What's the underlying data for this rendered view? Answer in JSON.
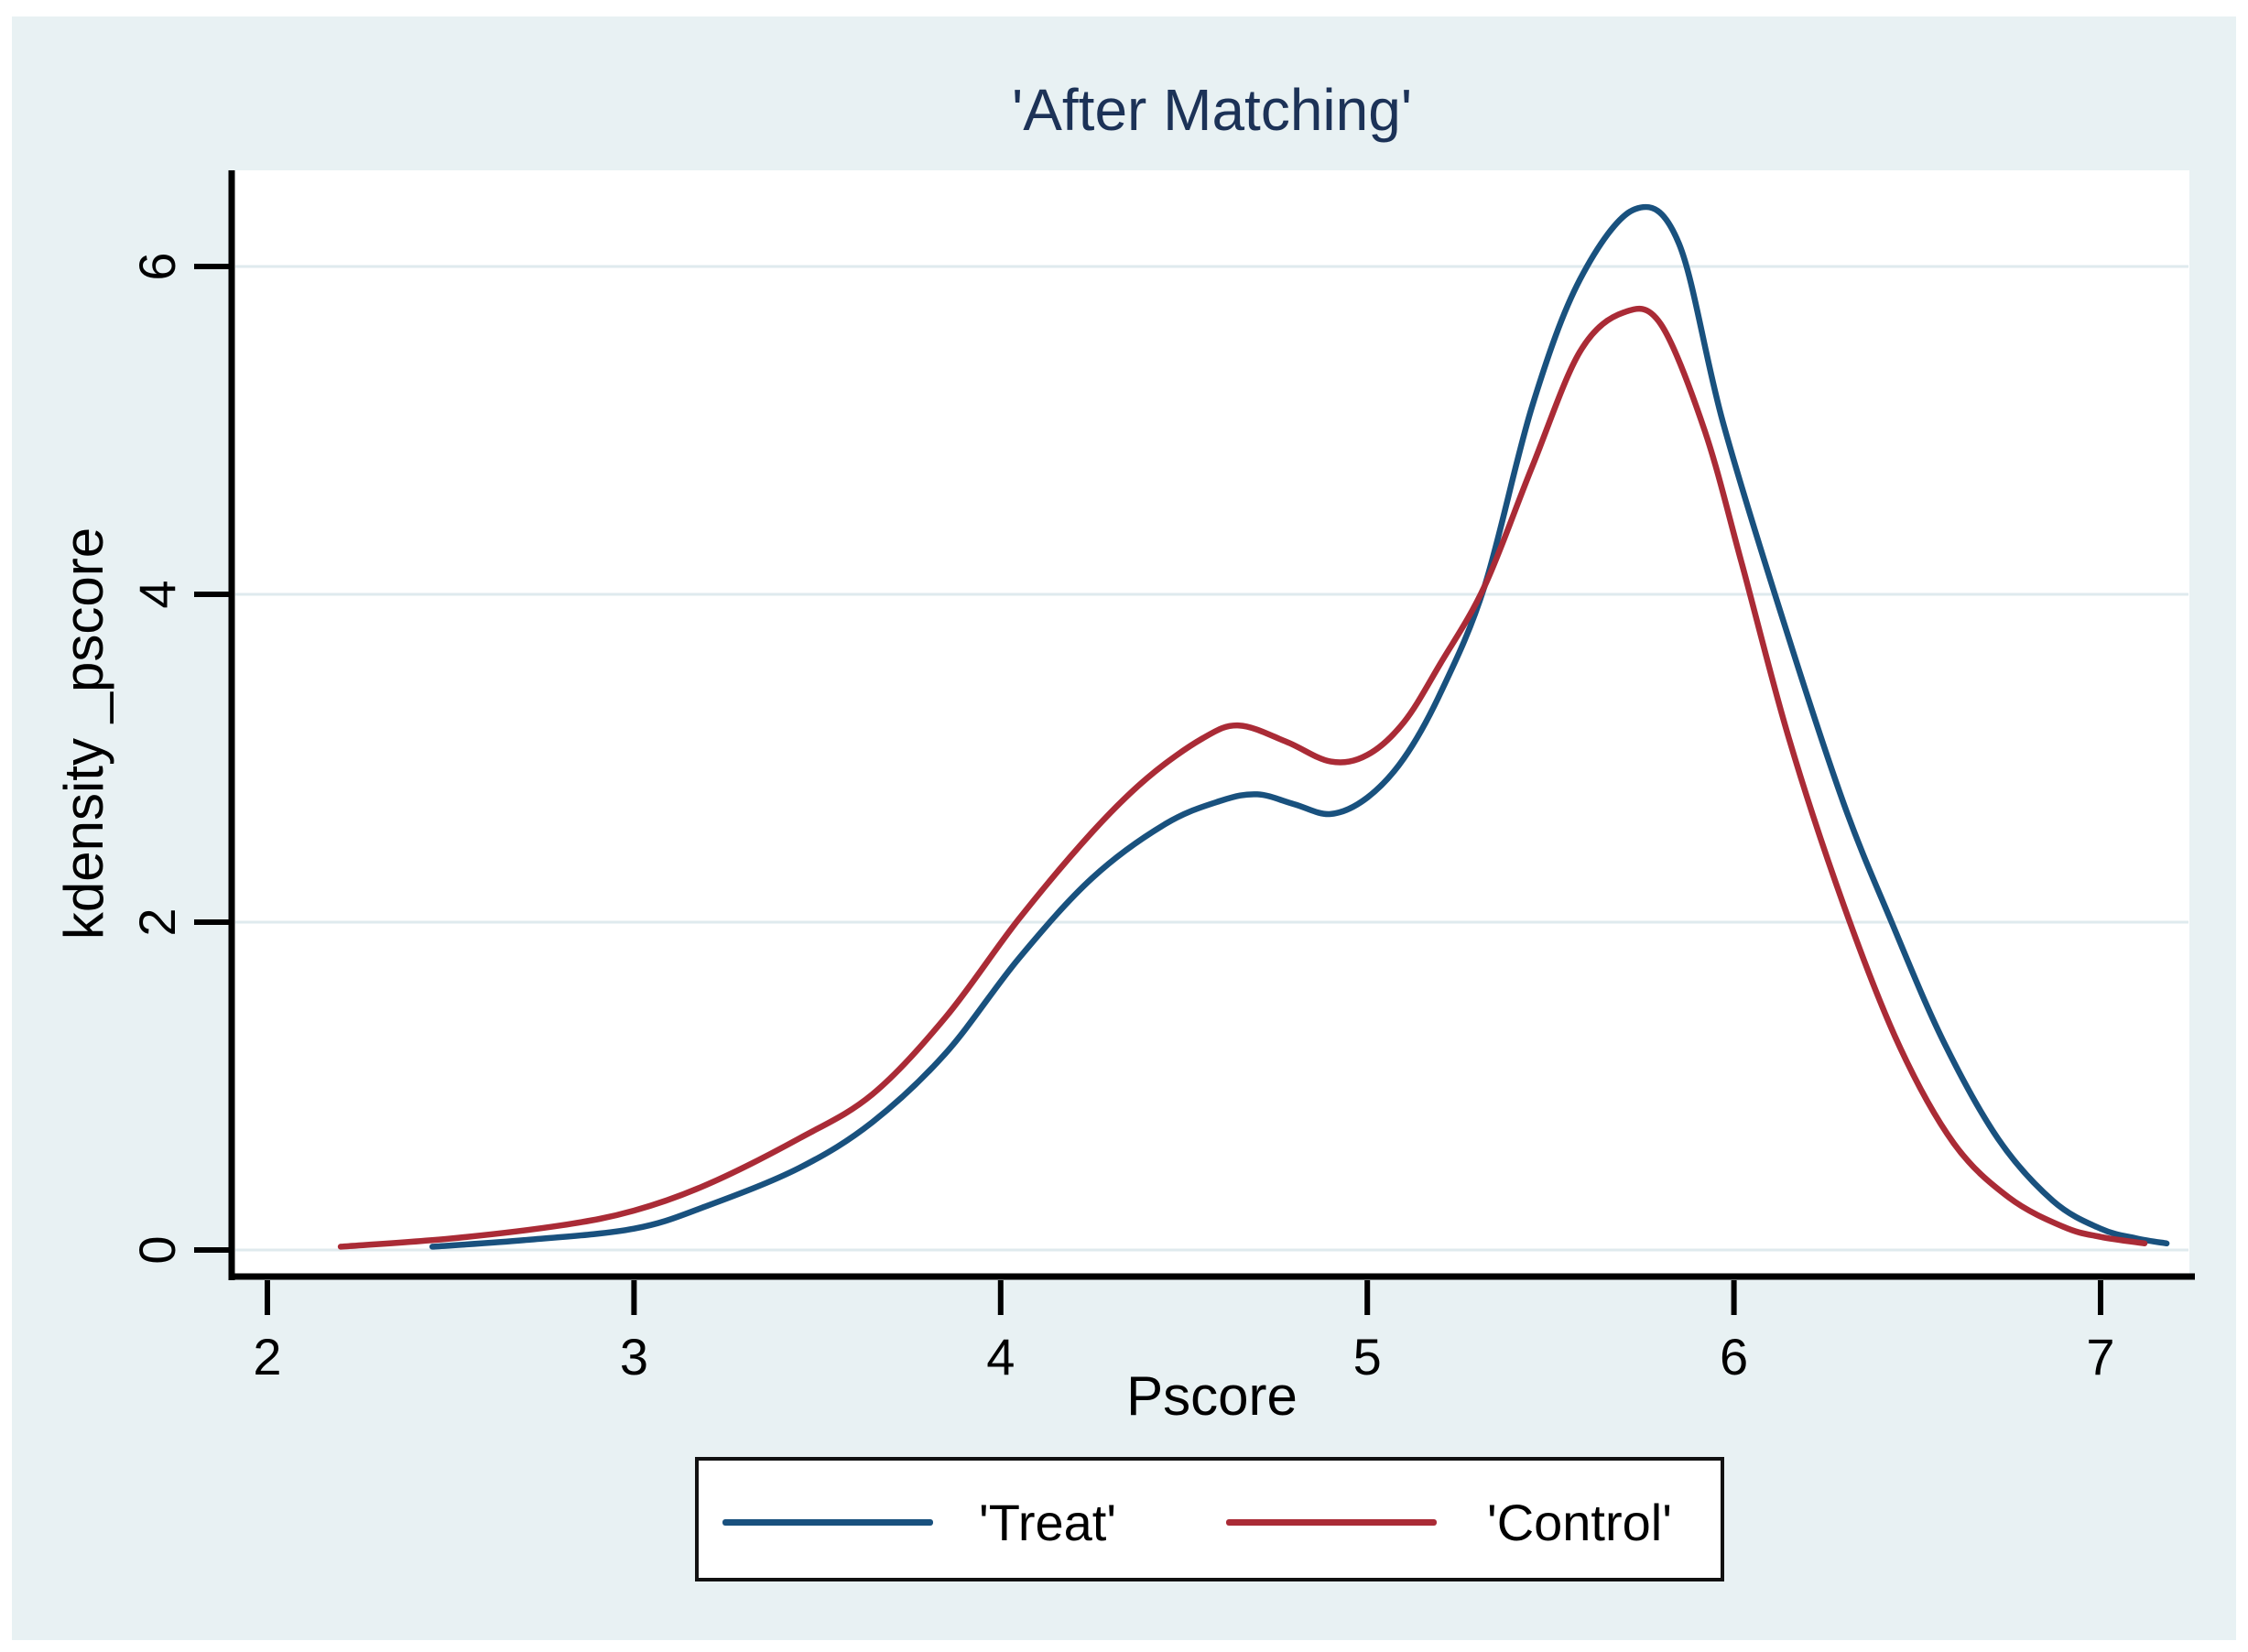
{
  "figure": {
    "title": "'After Matching'"
  },
  "chart_data": {
    "type": "line",
    "title": "'After Matching'",
    "xlabel": "Pscore",
    "ylabel": "kdensity _pscore",
    "x_ticks": [
      2,
      3,
      4,
      5,
      6,
      7
    ],
    "y_ticks": [
      0,
      2,
      4,
      6
    ],
    "xlim": [
      1.91,
      7.24
    ],
    "ylim": [
      0,
      6.58
    ],
    "grid": "horizontal",
    "legend_position": "bottom-center",
    "background_color": "#e8f1f3",
    "plot_background_color": "#ffffff",
    "gridline_color": "#dfeaee",
    "title_color": "#1c3257",
    "series": [
      {
        "name": "'Treat'",
        "color": "#19517e",
        "points": [
          [
            2.45,
            0.02
          ],
          [
            2.7,
            0.06
          ],
          [
            3.0,
            0.13
          ],
          [
            3.2,
            0.27
          ],
          [
            3.45,
            0.5
          ],
          [
            3.65,
            0.78
          ],
          [
            3.85,
            1.2
          ],
          [
            4.05,
            1.78
          ],
          [
            4.25,
            2.27
          ],
          [
            4.45,
            2.6
          ],
          [
            4.6,
            2.74
          ],
          [
            4.7,
            2.78
          ],
          [
            4.8,
            2.72
          ],
          [
            4.9,
            2.66
          ],
          [
            5.0,
            2.76
          ],
          [
            5.1,
            3.0
          ],
          [
            5.2,
            3.4
          ],
          [
            5.32,
            4.05
          ],
          [
            5.45,
            5.15
          ],
          [
            5.58,
            5.92
          ],
          [
            5.73,
            6.35
          ],
          [
            5.85,
            6.14
          ],
          [
            5.97,
            5.05
          ],
          [
            6.14,
            3.8
          ],
          [
            6.3,
            2.72
          ],
          [
            6.43,
            2.0
          ],
          [
            6.57,
            1.28
          ],
          [
            6.72,
            0.68
          ],
          [
            6.87,
            0.3
          ],
          [
            7.0,
            0.13
          ],
          [
            7.1,
            0.07
          ],
          [
            7.18,
            0.04
          ]
        ]
      },
      {
        "name": "'Control'",
        "color": "#aa2b36",
        "points": [
          [
            2.2,
            0.02
          ],
          [
            2.5,
            0.07
          ],
          [
            2.8,
            0.15
          ],
          [
            3.0,
            0.24
          ],
          [
            3.2,
            0.4
          ],
          [
            3.45,
            0.68
          ],
          [
            3.65,
            0.95
          ],
          [
            3.85,
            1.42
          ],
          [
            4.05,
            2.02
          ],
          [
            4.25,
            2.55
          ],
          [
            4.4,
            2.88
          ],
          [
            4.55,
            3.12
          ],
          [
            4.65,
            3.2
          ],
          [
            4.78,
            3.1
          ],
          [
            4.9,
            2.98
          ],
          [
            5.0,
            3.02
          ],
          [
            5.1,
            3.22
          ],
          [
            5.2,
            3.58
          ],
          [
            5.32,
            4.05
          ],
          [
            5.45,
            4.78
          ],
          [
            5.58,
            5.48
          ],
          [
            5.7,
            5.72
          ],
          [
            5.8,
            5.65
          ],
          [
            5.92,
            5.0
          ],
          [
            6.02,
            4.2
          ],
          [
            6.15,
            3.12
          ],
          [
            6.3,
            2.1
          ],
          [
            6.45,
            1.25
          ],
          [
            6.6,
            0.65
          ],
          [
            6.75,
            0.32
          ],
          [
            6.9,
            0.14
          ],
          [
            7.0,
            0.08
          ],
          [
            7.12,
            0.04
          ]
        ]
      }
    ]
  }
}
